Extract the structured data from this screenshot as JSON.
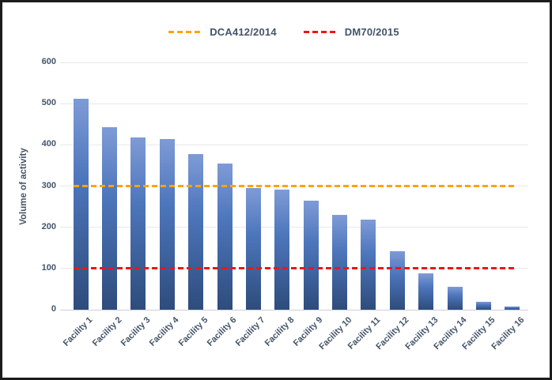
{
  "legend": {
    "items": [
      {
        "label": "DCA412/2014",
        "color": "#FFA408",
        "style": "dashed"
      },
      {
        "label": "DM70/2015",
        "color": "#F01418",
        "style": "dashed"
      }
    ]
  },
  "chart_data": {
    "type": "bar",
    "title": "",
    "ylabel": "Volume of activity",
    "xlabel": "",
    "ylim": [
      0,
      600
    ],
    "yticks": [
      0,
      100,
      200,
      300,
      400,
      500,
      600
    ],
    "grid": true,
    "legend_position": "top-center",
    "categories": [
      "Facility 1",
      "Facility 2",
      "Facility 3",
      "Facility 4",
      "Facility 5",
      "Facility 6",
      "Facility 7",
      "Facility 8",
      "Facility 9",
      "Facility 10",
      "Facility 11",
      "Facility 12",
      "Facility 13",
      "Facility 14",
      "Facility 15",
      "Facility 16"
    ],
    "values": [
      512,
      443,
      418,
      415,
      378,
      355,
      295,
      292,
      265,
      230,
      218,
      142,
      88,
      55,
      20,
      8
    ],
    "reference_lines": [
      {
        "name": "DCA412/2014",
        "value": 300,
        "color": "#FFA408"
      },
      {
        "name": "DM70/2015",
        "value": 100,
        "color": "#F01418"
      }
    ],
    "bar_gradient": [
      "#7f9bd6",
      "#4d76bc",
      "#2e4c7c"
    ],
    "axis_text_color": "#44546A",
    "gridline_color": "#e8e8ee"
  }
}
